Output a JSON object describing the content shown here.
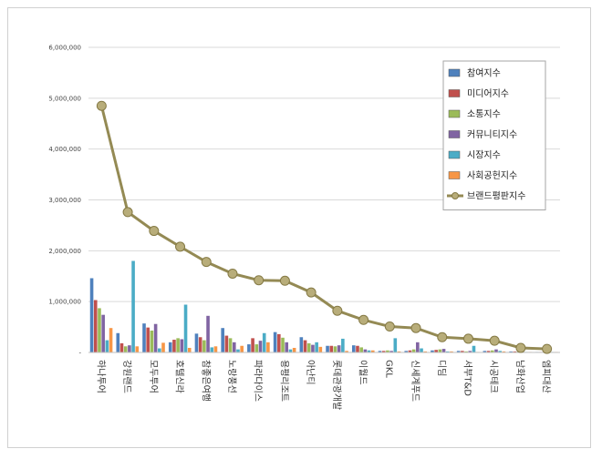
{
  "chart_data": {
    "type": "bar",
    "title": "",
    "xlabel": "",
    "ylabel": "",
    "ylim": [
      0,
      6000000
    ],
    "yticks": [
      0,
      1000000,
      2000000,
      3000000,
      4000000,
      5000000,
      6000000
    ],
    "ytick_labels": [
      "-",
      "1,000,000",
      "2,000,000",
      "3,000,000",
      "4,000,000",
      "5,000,000",
      "6,000,000"
    ],
    "grid": true,
    "legend_position": "top-right",
    "categories": [
      "하나투어",
      "강원랜드",
      "모두투어",
      "호텔신라",
      "참좋은여행",
      "노랑풍선",
      "파라다이스",
      "용평리조트",
      "아난티",
      "롯데관광개발",
      "이월드",
      "GKL",
      "신세계푸드",
      "디딤",
      "서부T&D",
      "시공테크",
      "남화산업",
      "엠피대산"
    ],
    "series": [
      {
        "name": "참여지수",
        "color": "#4f81bd",
        "kind": "bar",
        "values": [
          1460000,
          380000,
          570000,
          200000,
          370000,
          480000,
          160000,
          400000,
          300000,
          130000,
          140000,
          30000,
          30000,
          40000,
          30000,
          30000,
          20000,
          10000
        ]
      },
      {
        "name": "미디어지수",
        "color": "#c0504d",
        "kind": "bar",
        "values": [
          1030000,
          180000,
          490000,
          250000,
          300000,
          330000,
          280000,
          360000,
          240000,
          130000,
          130000,
          30000,
          40000,
          50000,
          30000,
          30000,
          20000,
          10000
        ]
      },
      {
        "name": "소통지수",
        "color": "#9bbb59",
        "kind": "bar",
        "values": [
          870000,
          120000,
          430000,
          280000,
          240000,
          280000,
          160000,
          290000,
          180000,
          120000,
          100000,
          40000,
          60000,
          60000,
          20000,
          40000,
          20000,
          10000
        ]
      },
      {
        "name": "커뮤니티지수",
        "color": "#8064a2",
        "kind": "bar",
        "values": [
          740000,
          140000,
          560000,
          260000,
          720000,
          200000,
          230000,
          200000,
          150000,
          140000,
          60000,
          30000,
          200000,
          70000,
          30000,
          60000,
          20000,
          10000
        ]
      },
      {
        "name": "시장지수",
        "color": "#4bacc6",
        "kind": "bar",
        "values": [
          240000,
          1800000,
          80000,
          940000,
          100000,
          60000,
          380000,
          60000,
          200000,
          270000,
          40000,
          280000,
          80000,
          20000,
          130000,
          30000,
          10000,
          10000
        ]
      },
      {
        "name": "사회공헌지수",
        "color": "#f79646",
        "kind": "bar",
        "values": [
          480000,
          120000,
          190000,
          90000,
          120000,
          130000,
          200000,
          90000,
          110000,
          30000,
          40000,
          20000,
          20000,
          20000,
          10000,
          20000,
          10000,
          10000
        ]
      },
      {
        "name": "브랜드평판지수",
        "color": "#948a54",
        "kind": "line",
        "values": [
          4850000,
          2760000,
          2390000,
          2080000,
          1780000,
          1550000,
          1420000,
          1410000,
          1180000,
          820000,
          640000,
          510000,
          480000,
          300000,
          270000,
          230000,
          90000,
          70000
        ]
      }
    ]
  }
}
